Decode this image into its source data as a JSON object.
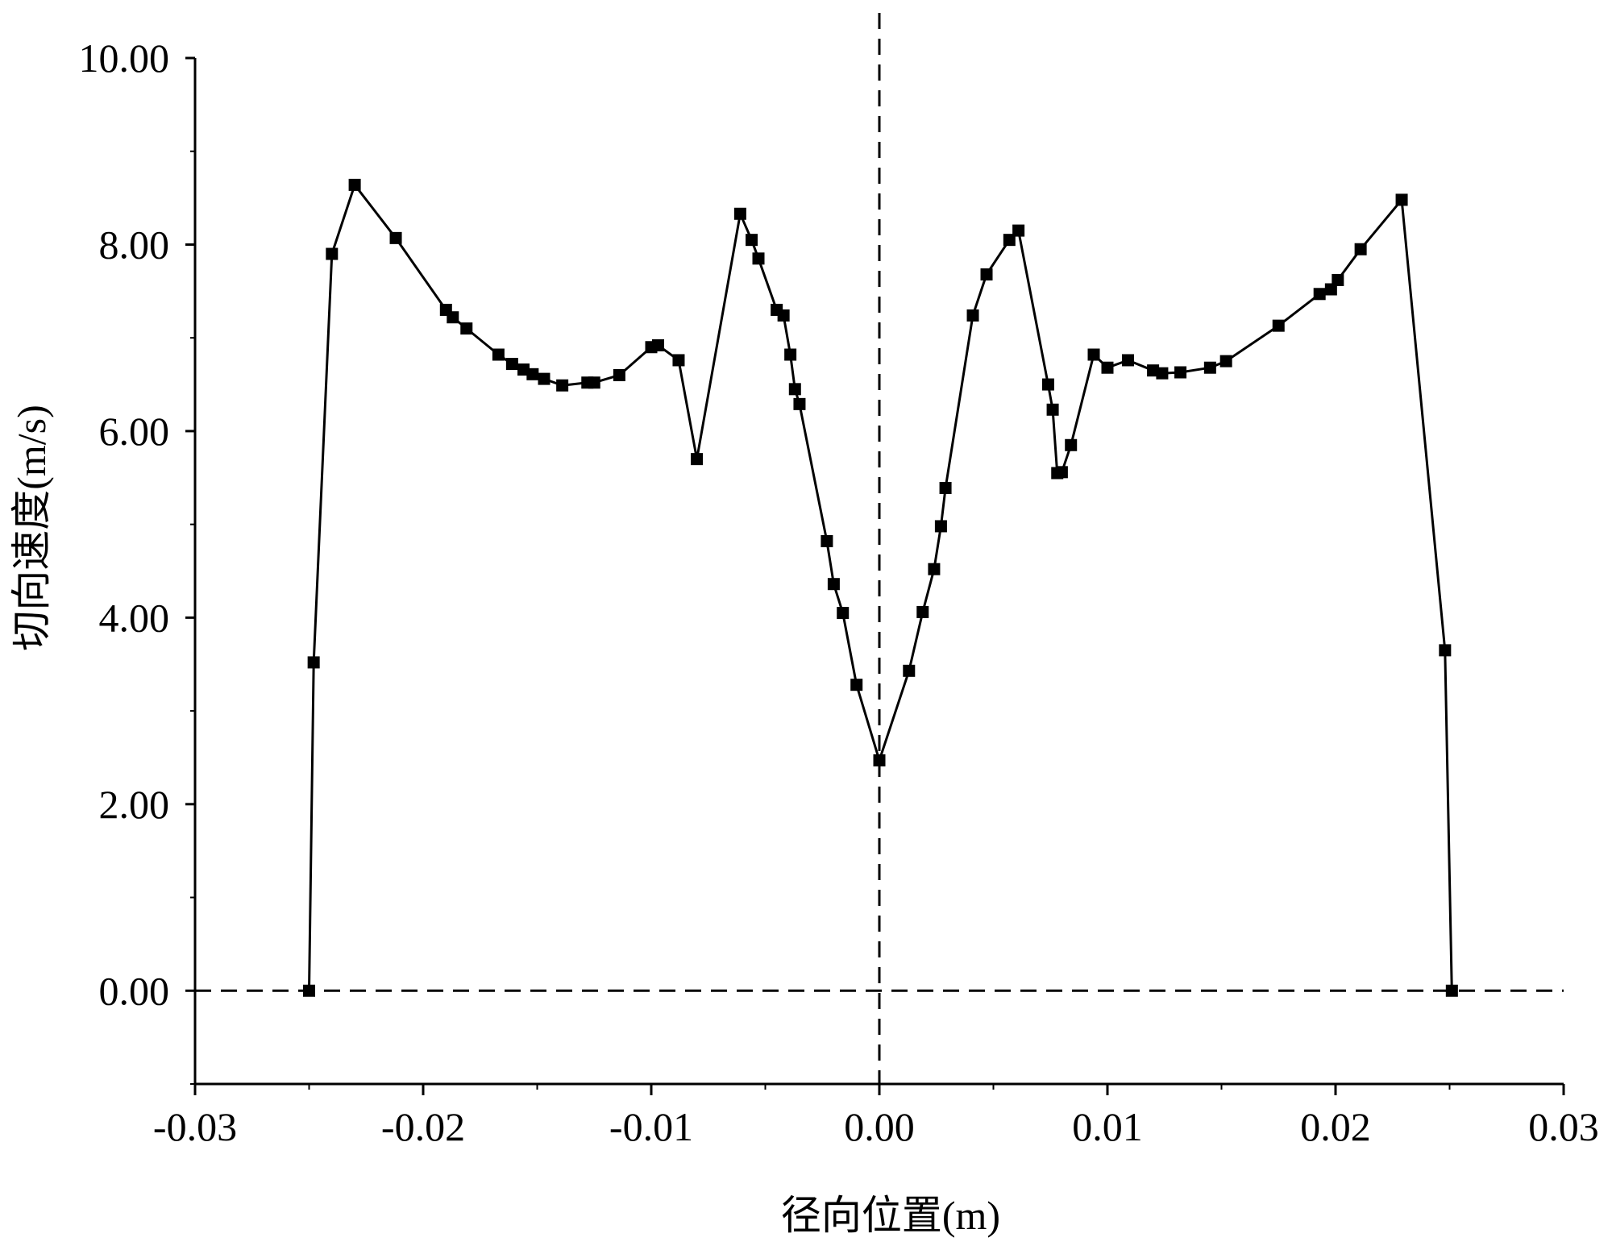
{
  "chart_data": {
    "type": "line",
    "title": "",
    "xlabel": "径向位置(m)",
    "ylabel": "切向速度(m/s)",
    "xlim": [
      -0.03,
      0.03
    ],
    "ylim": [
      -1,
      10
    ],
    "x_ticks": [
      -0.03,
      -0.02,
      -0.01,
      0.0,
      0.01,
      0.02,
      0.03
    ],
    "x_tick_labels": [
      "-0.03",
      "-0.02",
      "-0.01",
      "0.00",
      "0.01",
      "0.02",
      "0.03"
    ],
    "y_ticks": [
      0,
      2,
      4,
      6,
      8,
      10
    ],
    "y_tick_labels": [
      "0.00",
      "2.00",
      "4.00",
      "6.00",
      "8.00",
      "10.00"
    ],
    "grid": false,
    "legend": "none",
    "reference_lines": [
      {
        "orientation": "horizontal",
        "value": 0,
        "style": "dashed"
      },
      {
        "orientation": "vertical",
        "value": 0,
        "style": "dashed"
      }
    ],
    "marker": "square",
    "series": [
      {
        "color": "#000000",
        "x": [
          -0.025,
          -0.0248,
          -0.024,
          -0.023,
          -0.0212,
          -0.019,
          -0.0187,
          -0.0181,
          -0.0167,
          -0.0161,
          -0.0156,
          -0.0152,
          -0.0147,
          -0.0139,
          -0.0128,
          -0.0125,
          -0.0114,
          -0.01,
          -0.0097,
          -0.0088,
          -0.008,
          -0.0061,
          -0.0056,
          -0.0053,
          -0.0045,
          -0.0042,
          -0.0039,
          -0.0037,
          -0.0035,
          -0.0023,
          -0.002,
          -0.0016,
          -0.001,
          0.0,
          0.0013,
          0.0019,
          0.0024,
          0.0027,
          0.0029,
          0.0041,
          0.0047,
          0.0057,
          0.0061,
          0.0074,
          0.0076,
          0.0078,
          0.008,
          0.0084,
          0.0094,
          0.01,
          0.0109,
          0.012,
          0.0124,
          0.0132,
          0.0145,
          0.0152,
          0.0175,
          0.0193,
          0.0198,
          0.0201,
          0.0211,
          0.0229,
          0.0248,
          0.0251
        ],
        "y": [
          0.0,
          3.52,
          7.9,
          8.64,
          8.07,
          7.3,
          7.22,
          7.1,
          6.82,
          6.72,
          6.66,
          6.61,
          6.56,
          6.49,
          6.52,
          6.52,
          6.6,
          6.9,
          6.92,
          6.76,
          5.7,
          8.33,
          8.05,
          7.85,
          7.3,
          7.24,
          6.82,
          6.45,
          6.29,
          4.82,
          4.36,
          4.05,
          3.28,
          2.47,
          3.43,
          4.06,
          4.52,
          4.98,
          5.39,
          7.24,
          7.68,
          8.05,
          8.15,
          6.5,
          6.23,
          5.55,
          5.56,
          5.85,
          6.82,
          6.68,
          6.76,
          6.65,
          6.62,
          6.63,
          6.68,
          6.75,
          7.13,
          7.47,
          7.52,
          7.62,
          7.95,
          8.48,
          3.65,
          0.0
        ]
      }
    ]
  }
}
